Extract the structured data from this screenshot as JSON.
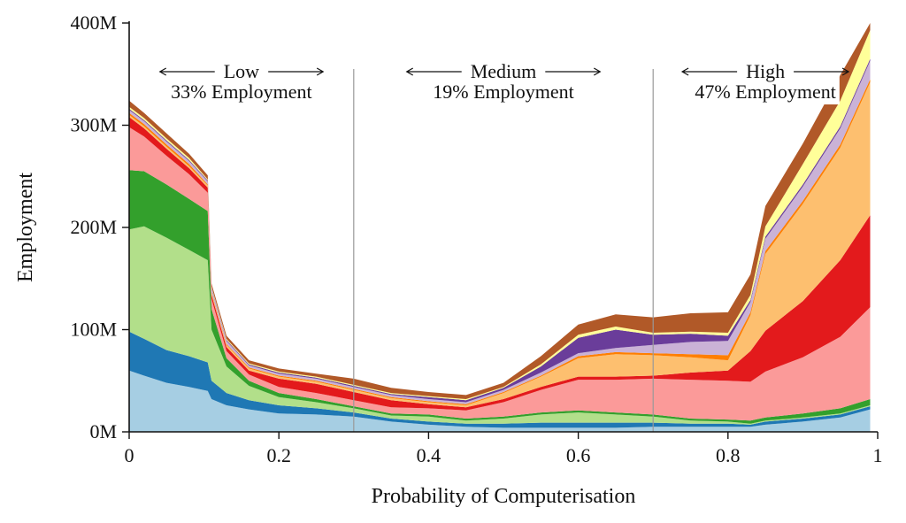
{
  "chart_data": {
    "type": "area",
    "xlabel": "Probability of Computerisation",
    "ylabel": "Employment",
    "xlim": [
      0,
      1
    ],
    "ylim": [
      0,
      400
    ],
    "x_ticks": [
      {
        "value": 0,
        "label": "0"
      },
      {
        "value": 0.2,
        "label": "0.2"
      },
      {
        "value": 0.4,
        "label": "0.4"
      },
      {
        "value": 0.6,
        "label": "0.6"
      },
      {
        "value": 0.8,
        "label": "0.8"
      },
      {
        "value": 1,
        "label": "1"
      }
    ],
    "y_ticks": [
      {
        "value": 0,
        "label": "0M"
      },
      {
        "value": 100,
        "label": "100M"
      },
      {
        "value": 200,
        "label": "200M"
      },
      {
        "value": 300,
        "label": "300M"
      },
      {
        "value": 400,
        "label": "400M"
      }
    ],
    "regions": [
      {
        "name": "Low",
        "share": "33% Employment",
        "from": 0,
        "to": 0.3
      },
      {
        "name": "Medium",
        "share": "19% Employment",
        "from": 0.3,
        "to": 0.7
      },
      {
        "name": "High",
        "share": "47% Employment",
        "from": 0.7,
        "to": 1
      }
    ],
    "boundaries": [
      0.3,
      0.7
    ],
    "grid": false,
    "x": [
      0,
      0.02,
      0.05,
      0.08,
      0.105,
      0.11,
      0.13,
      0.16,
      0.2,
      0.25,
      0.3,
      0.35,
      0.4,
      0.45,
      0.5,
      0.55,
      0.6,
      0.65,
      0.7,
      0.75,
      0.8,
      0.83,
      0.85,
      0.9,
      0.95,
      0.99
    ],
    "series": [
      {
        "color": "#a6cee3",
        "values": [
          60,
          55,
          48,
          44,
          40,
          32,
          26,
          22,
          18,
          17,
          15,
          10,
          7,
          5,
          4,
          4,
          4,
          4,
          5,
          5,
          5,
          5,
          7,
          10,
          14,
          22
        ]
      },
      {
        "color": "#1f78b4",
        "values": [
          38,
          36,
          32,
          30,
          28,
          18,
          12,
          9,
          8,
          6,
          4,
          3,
          3,
          3,
          4,
          5,
          5,
          5,
          4,
          3,
          3,
          2,
          3,
          3,
          3,
          3
        ]
      },
      {
        "color": "#b2df8a",
        "values": [
          100,
          110,
          110,
          104,
          100,
          50,
          26,
          14,
          8,
          6,
          4,
          3,
          5,
          3,
          5,
          8,
          10,
          8,
          6,
          3,
          2,
          1,
          1,
          1,
          1,
          1
        ]
      },
      {
        "color": "#33a02c",
        "values": [
          58,
          54,
          52,
          50,
          48,
          20,
          8,
          5,
          4,
          3,
          2,
          2,
          2,
          2,
          2,
          2,
          2,
          2,
          2,
          2,
          2,
          3,
          3,
          4,
          5,
          6
        ]
      },
      {
        "color": "#fb9a99",
        "values": [
          42,
          34,
          28,
          24,
          18,
          10,
          7,
          6,
          6,
          6,
          6,
          6,
          6,
          8,
          14,
          22,
          30,
          32,
          35,
          38,
          38,
          38,
          45,
          55,
          70,
          90
        ]
      },
      {
        "color": "#e31a1c",
        "values": [
          10,
          8,
          7,
          6,
          5,
          4,
          4,
          4,
          8,
          9,
          8,
          7,
          4,
          3,
          3,
          3,
          3,
          3,
          3,
          7,
          10,
          30,
          40,
          55,
          75,
          90
        ]
      },
      {
        "color": "#fdbf6f",
        "values": [
          2,
          2,
          2,
          2,
          2,
          2,
          2,
          2,
          2,
          2,
          2,
          2,
          2,
          2,
          6,
          10,
          18,
          22,
          20,
          15,
          10,
          35,
          75,
          95,
          110,
          130
        ]
      },
      {
        "color": "#ff7f00",
        "values": [
          2,
          2,
          2,
          2,
          1,
          1,
          1,
          1,
          1,
          1,
          1,
          1,
          1,
          1,
          1,
          1,
          2,
          2,
          2,
          3,
          5,
          3,
          3,
          3,
          3,
          3
        ]
      },
      {
        "color": "#cab2d6",
        "values": [
          3,
          3,
          3,
          3,
          3,
          3,
          3,
          2,
          2,
          2,
          2,
          2,
          2,
          2,
          2,
          3,
          3,
          4,
          8,
          12,
          14,
          10,
          12,
          14,
          16,
          18
        ]
      },
      {
        "color": "#6a3d9a",
        "values": [
          1,
          1,
          1,
          1,
          1,
          1,
          1,
          1,
          1,
          1,
          1,
          1,
          2,
          2,
          2,
          6,
          15,
          18,
          10,
          8,
          5,
          2,
          2,
          2,
          2,
          2
        ]
      },
      {
        "color": "#ffff99",
        "values": [
          2,
          2,
          2,
          2,
          1,
          1,
          1,
          1,
          1,
          1,
          1,
          1,
          1,
          1,
          1,
          2,
          3,
          3,
          2,
          2,
          3,
          5,
          10,
          20,
          25,
          28
        ]
      },
      {
        "color": "#b15928",
        "values": [
          6,
          5,
          5,
          4,
          4,
          3,
          3,
          3,
          3,
          3,
          6,
          5,
          4,
          4,
          4,
          8,
          10,
          12,
          15,
          18,
          20,
          20,
          20,
          20,
          25,
          7
        ]
      }
    ]
  }
}
